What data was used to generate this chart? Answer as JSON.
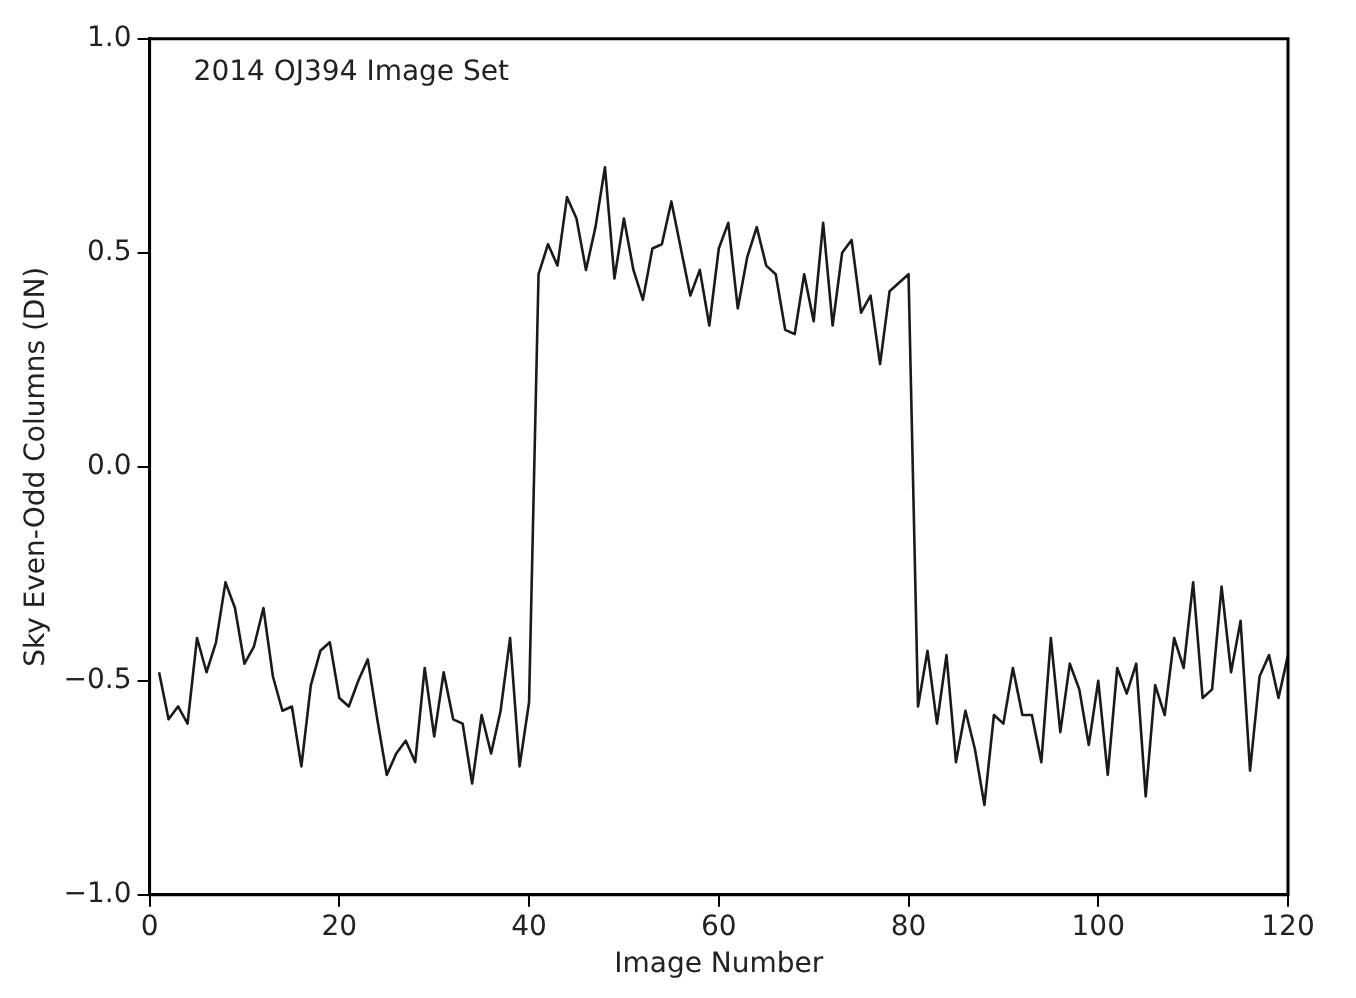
{
  "chart_data": {
    "type": "line",
    "xlabel": "Image Number",
    "ylabel": "Sky Even-Odd Columns (DN)",
    "annotations": [
      "2014 OJ394 Image Set"
    ],
    "x": [
      1,
      2,
      3,
      4,
      5,
      6,
      7,
      8,
      9,
      10,
      11,
      12,
      13,
      14,
      15,
      16,
      17,
      18,
      19,
      20,
      21,
      22,
      23,
      24,
      25,
      26,
      27,
      28,
      29,
      30,
      31,
      32,
      33,
      34,
      35,
      36,
      37,
      38,
      39,
      40,
      41,
      42,
      43,
      44,
      45,
      46,
      47,
      48,
      49,
      50,
      51,
      52,
      53,
      54,
      55,
      56,
      57,
      58,
      59,
      60,
      61,
      62,
      63,
      64,
      65,
      66,
      67,
      68,
      69,
      70,
      71,
      72,
      73,
      74,
      75,
      76,
      77,
      78,
      79,
      80,
      81,
      82,
      83,
      84,
      85,
      86,
      87,
      88,
      89,
      90,
      91,
      92,
      93,
      94,
      95,
      96,
      97,
      98,
      99,
      100,
      101,
      102,
      103,
      104,
      105,
      106,
      107,
      108,
      109,
      110,
      111,
      112,
      113,
      114,
      115,
      116,
      117,
      118,
      119,
      120
    ],
    "series": [
      {
        "color": "#1a1a1a",
        "values": [
          -0.48,
          -0.59,
          -0.56,
          -0.6,
          -0.4,
          -0.48,
          -0.41,
          -0.27,
          -0.33,
          -0.46,
          -0.42,
          -0.33,
          -0.49,
          -0.57,
          -0.56,
          -0.7,
          -0.51,
          -0.43,
          -0.41,
          -0.54,
          -0.56,
          -0.5,
          -0.45,
          -0.59,
          -0.72,
          -0.67,
          -0.64,
          -0.69,
          -0.47,
          -0.63,
          -0.48,
          -0.59,
          -0.6,
          -0.74,
          -0.58,
          -0.67,
          -0.57,
          -0.4,
          -0.7,
          -0.55,
          0.45,
          0.52,
          0.47,
          0.63,
          0.58,
          0.46,
          0.56,
          0.7,
          0.44,
          0.58,
          0.46,
          0.39,
          0.51,
          0.52,
          0.62,
          0.51,
          0.4,
          0.46,
          0.33,
          0.51,
          0.57,
          0.37,
          0.49,
          0.56,
          0.47,
          0.45,
          0.32,
          0.31,
          0.45,
          0.34,
          0.57,
          0.33,
          0.5,
          0.53,
          0.36,
          0.4,
          0.24,
          0.41,
          0.43,
          0.45,
          -0.56,
          -0.43,
          -0.6,
          -0.44,
          -0.69,
          -0.57,
          -0.66,
          -0.79,
          -0.58,
          -0.6,
          -0.47,
          -0.58,
          -0.58,
          -0.69,
          -0.4,
          -0.62,
          -0.46,
          -0.52,
          -0.65,
          -0.5,
          -0.72,
          -0.47,
          -0.53,
          -0.46,
          -0.77,
          -0.51,
          -0.58,
          -0.4,
          -0.47,
          -0.27,
          -0.54,
          -0.52,
          -0.28,
          -0.48,
          -0.36,
          -0.71,
          -0.49,
          -0.44,
          -0.54,
          -0.44
        ]
      }
    ],
    "xlim": [
      0,
      120
    ],
    "xticks": [
      0,
      20,
      40,
      60,
      80,
      100,
      120
    ],
    "ylim": [
      -1,
      1
    ],
    "yticks": [
      {
        "value": -1,
        "label": "−1.0"
      },
      {
        "value": -0.5,
        "label": "−0.5"
      },
      {
        "value": 0,
        "label": "0.0"
      },
      {
        "value": 0.5,
        "label": "0.5"
      },
      {
        "value": 1,
        "label": "1.0"
      }
    ],
    "grid": false,
    "legend": false,
    "marker": "none",
    "line_style": "solid"
  }
}
